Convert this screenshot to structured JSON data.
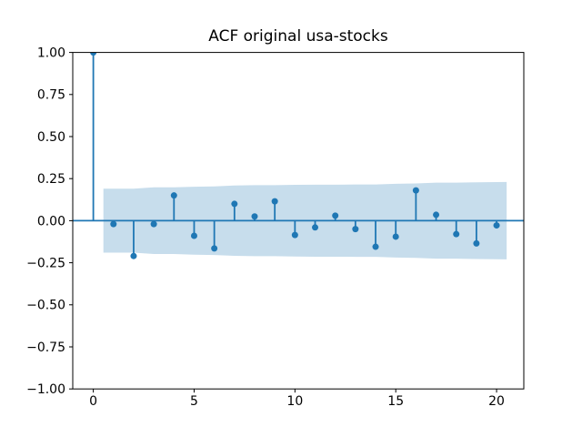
{
  "chart_data": {
    "type": "stem",
    "title": "ACF original usa-stocks",
    "xlabel": "",
    "ylabel": "",
    "x": [
      0,
      1,
      2,
      3,
      4,
      5,
      6,
      7,
      8,
      9,
      10,
      11,
      12,
      13,
      14,
      15,
      16,
      17,
      18,
      19,
      20
    ],
    "values": [
      1.0,
      -0.02,
      -0.21,
      -0.02,
      0.15,
      -0.09,
      -0.165,
      0.1,
      0.025,
      0.115,
      -0.085,
      -0.04,
      0.03,
      -0.05,
      -0.155,
      -0.095,
      0.18,
      0.035,
      -0.08,
      -0.135,
      -0.028
    ],
    "xlim": [
      -1.02,
      21.35
    ],
    "ylim": [
      -1.0,
      1.0
    ],
    "xticks": {
      "values": [
        0,
        5,
        10,
        15,
        20
      ],
      "labels": [
        "0",
        "5",
        "10",
        "15",
        "20"
      ]
    },
    "yticks": {
      "values": [
        1.0,
        0.75,
        0.5,
        0.25,
        0.0,
        -0.25,
        -0.5,
        -0.75,
        -1.0
      ],
      "labels": [
        "1.00",
        "0.75",
        "0.50",
        "0.25",
        "0.00",
        "−0.25",
        "−0.50",
        "−0.75",
        "−1.00"
      ]
    },
    "confidence_band": {
      "x": [
        0.5,
        2,
        3,
        4,
        5,
        6,
        7,
        8,
        9,
        10,
        11,
        12,
        13,
        14,
        15,
        16,
        17,
        18,
        19,
        20.5
      ],
      "upper": [
        0.19,
        0.19,
        0.198,
        0.198,
        0.202,
        0.204,
        0.209,
        0.211,
        0.211,
        0.213,
        0.214,
        0.214,
        0.215,
        0.215,
        0.219,
        0.221,
        0.226,
        0.226,
        0.228,
        0.23
      ],
      "lower": [
        -0.19,
        -0.19,
        -0.198,
        -0.198,
        -0.202,
        -0.204,
        -0.209,
        -0.211,
        -0.211,
        -0.213,
        -0.214,
        -0.214,
        -0.215,
        -0.215,
        -0.219,
        -0.221,
        -0.226,
        -0.226,
        -0.228,
        -0.23
      ]
    },
    "grid": false,
    "colors": {
      "series": "#1f77b4",
      "band_fill": "rgba(31,119,180,0.25)",
      "axis": "#000000",
      "text": "#000000",
      "background": "#ffffff"
    }
  }
}
